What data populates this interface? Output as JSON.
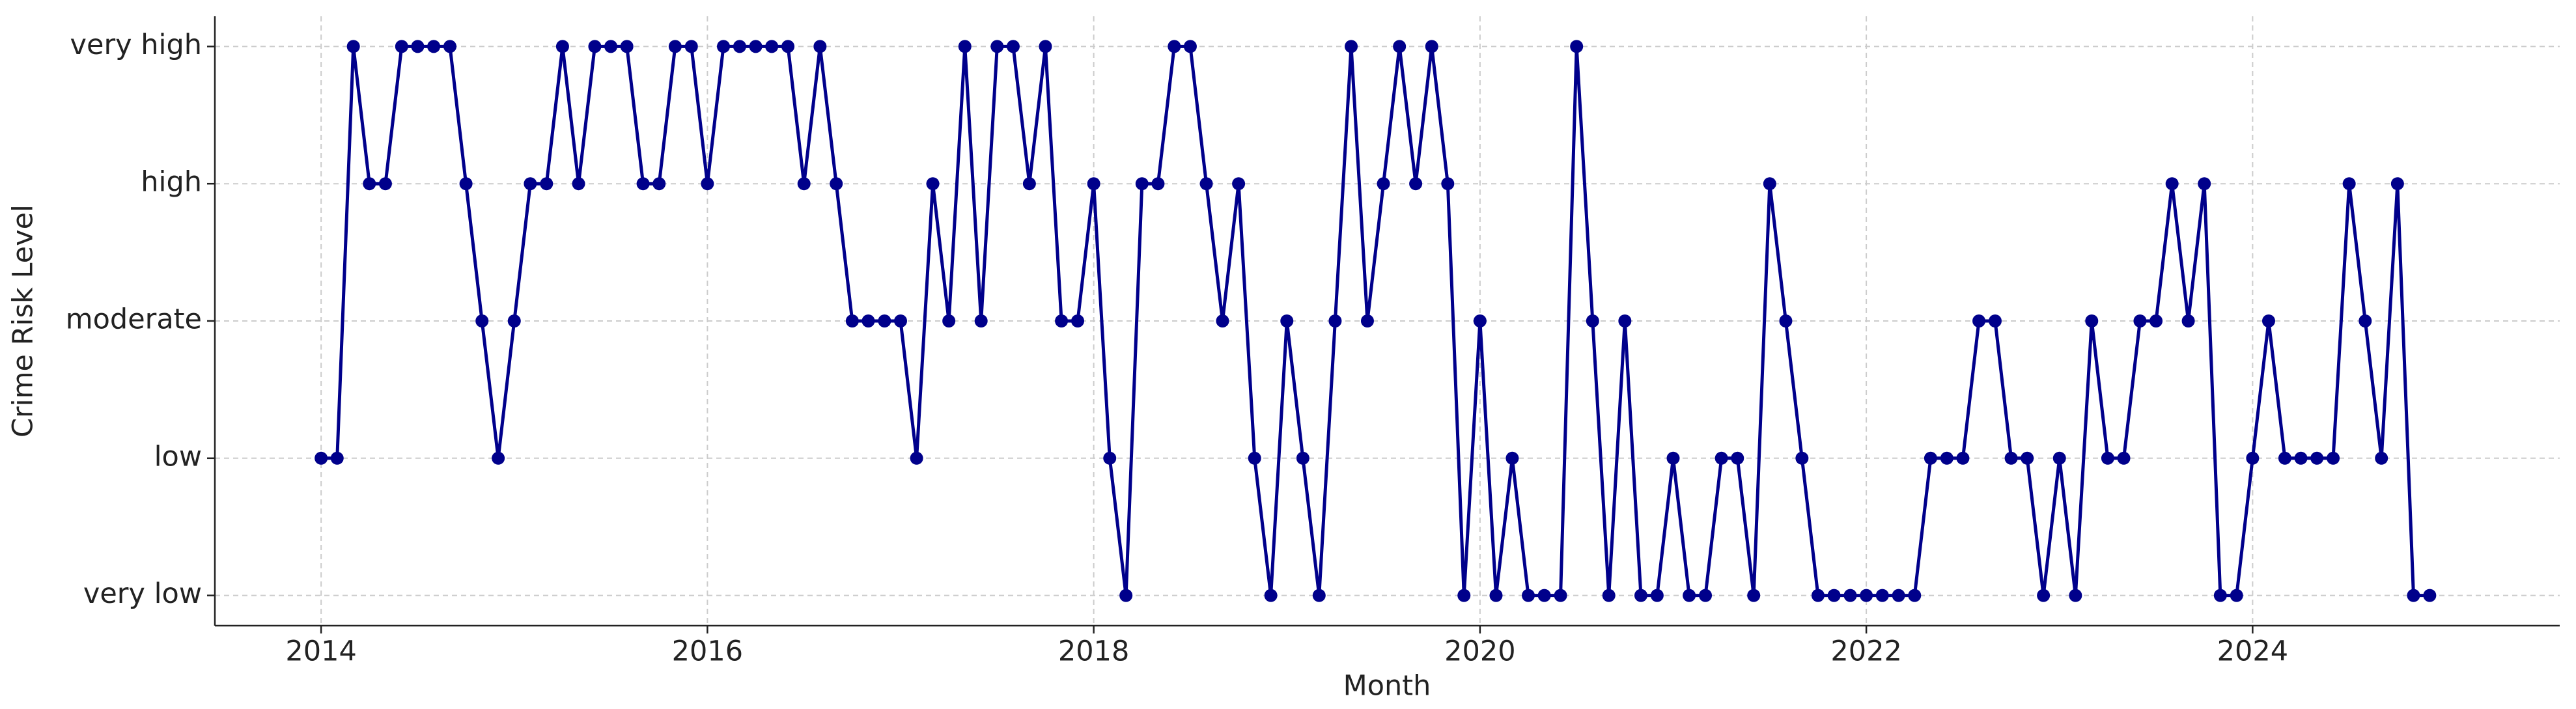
{
  "chart_data": {
    "type": "line",
    "xlabel": "Month",
    "ylabel": "Crime Risk Level",
    "x": [
      2014.0,
      2014.083,
      2014.167,
      2014.25,
      2014.333,
      2014.417,
      2014.5,
      2014.583,
      2014.667,
      2014.75,
      2014.833,
      2014.917,
      2015.0,
      2015.083,
      2015.167,
      2015.25,
      2015.333,
      2015.417,
      2015.5,
      2015.583,
      2015.667,
      2015.75,
      2015.833,
      2015.917,
      2016.0,
      2016.083,
      2016.167,
      2016.25,
      2016.333,
      2016.417,
      2016.5,
      2016.583,
      2016.667,
      2016.75,
      2016.833,
      2016.917,
      2017.0,
      2017.083,
      2017.167,
      2017.25,
      2017.333,
      2017.417,
      2017.5,
      2017.583,
      2017.667,
      2017.75,
      2017.833,
      2017.917,
      2018.0,
      2018.083,
      2018.167,
      2018.25,
      2018.333,
      2018.417,
      2018.5,
      2018.583,
      2018.667,
      2018.75,
      2018.833,
      2018.917,
      2019.0,
      2019.083,
      2019.167,
      2019.25,
      2019.333,
      2019.417,
      2019.5,
      2019.583,
      2019.667,
      2019.75,
      2019.833,
      2019.917,
      2020.0,
      2020.083,
      2020.167,
      2020.25,
      2020.333,
      2020.417,
      2020.5,
      2020.583,
      2020.667,
      2020.75,
      2020.833,
      2020.917,
      2021.0,
      2021.083,
      2021.167,
      2021.25,
      2021.333,
      2021.417,
      2021.5,
      2021.583,
      2021.667,
      2021.75,
      2021.833,
      2021.917,
      2022.0,
      2022.083,
      2022.167,
      2022.25,
      2022.333,
      2022.417,
      2022.5,
      2022.583,
      2022.667,
      2022.75,
      2022.833,
      2022.917,
      2023.0,
      2023.083,
      2023.167,
      2023.25,
      2023.333,
      2023.417,
      2023.5,
      2023.583,
      2023.667,
      2023.75,
      2023.833,
      2023.917,
      2024.0,
      2024.083,
      2024.167,
      2024.25,
      2024.333,
      2024.417,
      2024.5,
      2024.583,
      2024.667,
      2024.75,
      2024.833,
      2024.917
    ],
    "series": [
      {
        "name": "Crime Risk Level",
        "color": "#00008b",
        "values": [
          1,
          1,
          4,
          3,
          3,
          4,
          4,
          4,
          4,
          3,
          2,
          1,
          2,
          3,
          3,
          4,
          3,
          4,
          4,
          4,
          3,
          3,
          4,
          4,
          3,
          4,
          4,
          4,
          4,
          4,
          3,
          4,
          3,
          2,
          2,
          2,
          2,
          1,
          3,
          2,
          4,
          2,
          4,
          4,
          3,
          4,
          2,
          2,
          3,
          1,
          0,
          3,
          3,
          4,
          4,
          3,
          2,
          3,
          1,
          0,
          2,
          1,
          0,
          2,
          4,
          2,
          3,
          4,
          3,
          4,
          3,
          0,
          2,
          0,
          1,
          0,
          0,
          0,
          4,
          2,
          0,
          2,
          0,
          0,
          1,
          0,
          0,
          1,
          1,
          0,
          3,
          2,
          1,
          0,
          0,
          0,
          0,
          0,
          0,
          0,
          1,
          1,
          1,
          2,
          2,
          1,
          1,
          0,
          1,
          0,
          2,
          1,
          1,
          2,
          2,
          3,
          2,
          3,
          0,
          0,
          1,
          2,
          1,
          1,
          1,
          1,
          3,
          2,
          1,
          3,
          0,
          0
        ]
      }
    ],
    "xlim": [
      2013.45,
      2025.59
    ],
    "xticks": [
      2014,
      2016,
      2018,
      2020,
      2022,
      2024
    ],
    "ylim": [
      -0.22,
      4.22
    ],
    "yticks": [
      {
        "value": 0,
        "label": "very low"
      },
      {
        "value": 1,
        "label": "low"
      },
      {
        "value": 2,
        "label": "moderate"
      },
      {
        "value": 3,
        "label": "high"
      },
      {
        "value": 4,
        "label": "very high"
      }
    ],
    "grid": true
  }
}
